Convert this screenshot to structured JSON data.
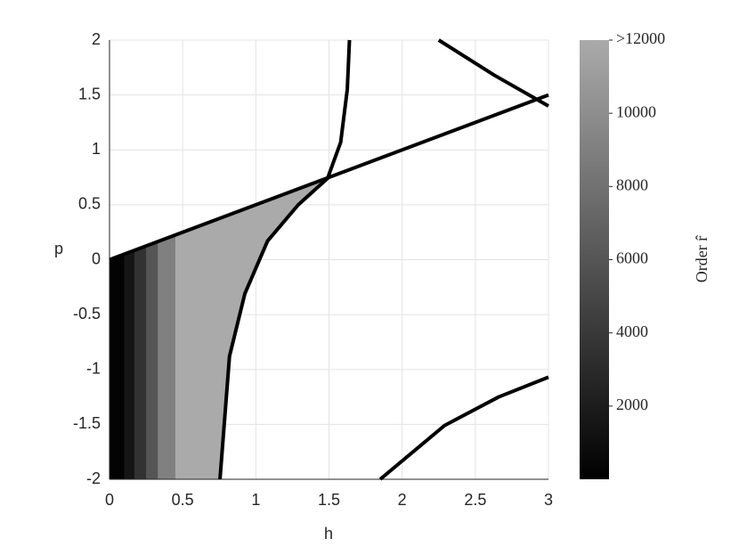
{
  "chart_data": {
    "type": "line",
    "xlabel": "h",
    "ylabel": "p",
    "xlim": [
      0,
      3
    ],
    "ylim": [
      -2,
      2
    ],
    "xticks": [
      0,
      0.5,
      1,
      1.5,
      2,
      2.5,
      3
    ],
    "yticks": [
      -2,
      -1.5,
      -1,
      -0.5,
      0,
      0.5,
      1,
      1.5,
      2
    ],
    "grid": true,
    "series": [
      {
        "color": "#000000",
        "x": [
          0,
          3
        ],
        "values": [
          0,
          1.5
        ]
      },
      {
        "color": "#000000",
        "x": [
          0.755,
          0.82,
          0.925,
          1.08,
          1.29,
          1.49,
          1.58,
          1.625,
          1.64
        ],
        "values": [
          -2,
          -0.88,
          -0.31,
          0.17,
          0.5,
          0.74,
          1.07,
          1.55,
          2
        ]
      },
      {
        "color": "#000000",
        "x": [
          2.25,
          2.63,
          3
        ],
        "values": [
          2,
          1.68,
          1.4
        ]
      },
      {
        "color": "#000000",
        "x": [
          1.85,
          2.29,
          2.66,
          3
        ],
        "values": [
          -2,
          -1.51,
          -1.25,
          -1.07
        ]
      }
    ],
    "heatmap": {
      "h_edges": [
        0,
        0.1,
        0.17,
        0.25,
        0.33,
        0.45,
        1.7
      ],
      "values": [
        200,
        1500,
        3500,
        6000,
        9000,
        12000
      ]
    },
    "colorbar": {
      "label": "Order r̂",
      "clim": [
        0,
        12000
      ],
      "ticks": [
        2000,
        4000,
        6000,
        8000,
        10000,
        {
          "value": 12000,
          "label": ">12000"
        }
      ]
    }
  }
}
